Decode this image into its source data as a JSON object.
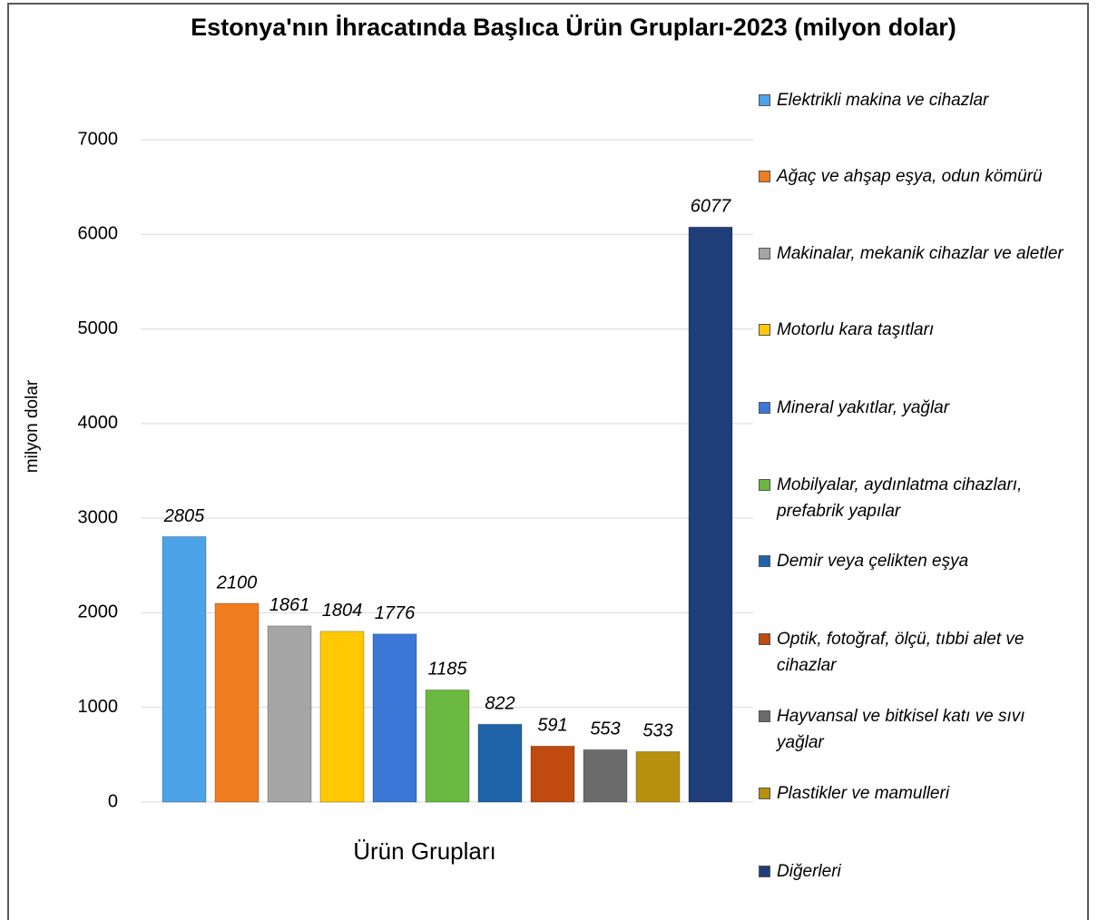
{
  "chart_data": {
    "type": "bar",
    "title": "Estonya'nın İhracatında Başlıca Ürün Grupları-2023 (milyon dolar)",
    "x_label": "Ürün Grupları",
    "y_label": "milyon dolar",
    "categories": [
      null
    ],
    "series": [
      {
        "name": "Elektrikli makina ve cihazlar",
        "color": "#4da3e8",
        "values": [
          2805
        ]
      },
      {
        "name": "Ağaç ve ahşap eşya, odun kömürü",
        "color": "#f07d1e",
        "values": [
          2100
        ]
      },
      {
        "name": "Makinalar, mekanik cihazlar ve aletler",
        "color": "#a5a5a5",
        "values": [
          1861
        ]
      },
      {
        "name": "Motorlu kara taşıtları",
        "color": "#ffc800",
        "values": [
          1804
        ]
      },
      {
        "name": "Mineral yakıtlar, yağlar",
        "color": "#3a78d8",
        "values": [
          1776
        ]
      },
      {
        "name": "Mobilyalar, aydınlatma cihazları, prefabrik yapılar",
        "color": "#6ab83e",
        "values": [
          1185
        ]
      },
      {
        "name": "Demir veya çelikten eşya",
        "color": "#1f64a8",
        "values": [
          822
        ]
      },
      {
        "name": "Optik, fotoğraf, ölçü, tıbbi alet ve cihazlar",
        "color": "#c04a10",
        "values": [
          591
        ]
      },
      {
        "name": "Hayvansal ve bitkisel katı ve sıvı yağlar",
        "color": "#6b6b6b",
        "values": [
          553
        ]
      },
      {
        "name": "Plastikler ve mamulleri",
        "color": "#b8900f",
        "values": [
          533
        ]
      },
      {
        "name": "Diğerleri",
        "color": "#1f3e78",
        "values": [
          6077
        ]
      }
    ],
    "ylim": [
      0,
      7000
    ],
    "yticks": [
      0,
      1000,
      2000,
      3000,
      4000,
      5000,
      6000,
      7000
    ],
    "grid": true,
    "legend": "right"
  }
}
